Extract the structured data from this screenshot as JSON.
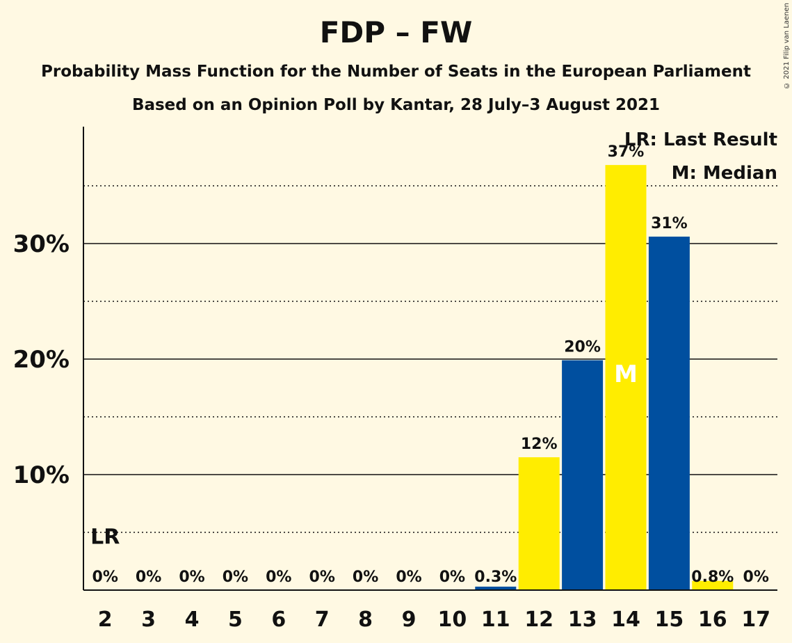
{
  "title": "FDP – FW",
  "subtitle": "Probability Mass Function for the Number of Seats in the European Parliament",
  "subtitle2": "Based on an Opinion Poll by Kantar, 28 July–3 August 2021",
  "copyright": "© 2021 Filip van Laenen",
  "legend": {
    "last_result": "LR: Last Result",
    "median": "M: Median"
  },
  "colors": {
    "background": "#FFF9E3",
    "yellow": "#FFED00",
    "blue": "#004F9F"
  },
  "chart_data": {
    "type": "bar",
    "categories": [
      "2",
      "3",
      "4",
      "5",
      "6",
      "7",
      "8",
      "9",
      "10",
      "11",
      "12",
      "13",
      "14",
      "15",
      "16",
      "17"
    ],
    "values": [
      0,
      0,
      0,
      0,
      0,
      0,
      0,
      0,
      0,
      0.3,
      11.5,
      19.9,
      36.8,
      30.6,
      0.8,
      0
    ],
    "data_labels": [
      "0%",
      "0%",
      "0%",
      "0%",
      "0%",
      "0%",
      "0%",
      "0%",
      "0%",
      "0.3%",
      "12%",
      "20%",
      "37%",
      "31%",
      "0.8%",
      "0%"
    ],
    "bar_colors": [
      "#004F9F",
      "#FFED00",
      "#004F9F",
      "#FFED00",
      "#004F9F",
      "#FFED00",
      "#004F9F",
      "#FFED00",
      "#004F9F",
      "#004F9F",
      "#FFED00",
      "#004F9F",
      "#FFED00",
      "#004F9F",
      "#FFED00",
      "#004F9F"
    ],
    "y_ticks": [
      10,
      20,
      30
    ],
    "y_tick_labels": [
      "10%",
      "20%",
      "30%"
    ],
    "minor_gridlines": [
      5,
      15,
      25,
      35
    ],
    "ylim": [
      0,
      40
    ],
    "last_result_category": "2",
    "last_result_marker": "LR",
    "median_category": "14",
    "median_marker": "M",
    "legend_position": "top-right"
  }
}
